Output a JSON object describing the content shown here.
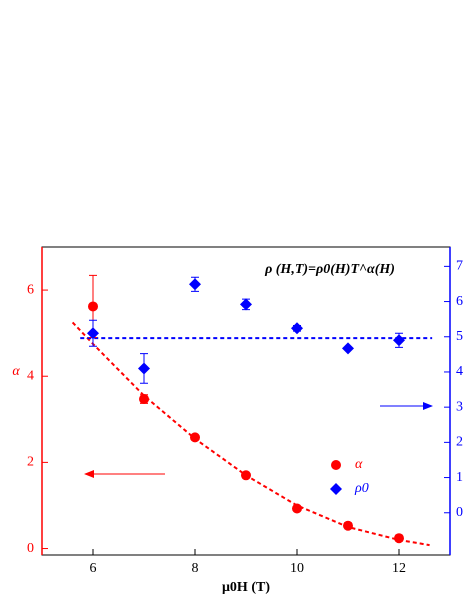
{
  "chart_data": {
    "type": "scatter",
    "annotation": "ρ (H,T)=ρ0(H)T^α(H)",
    "x_label": "μ0H (T)",
    "y_label": "α",
    "xlim": [
      5,
      13
    ],
    "xticks": [
      6,
      8,
      10,
      12
    ],
    "ylim": [
      -0.15,
      7
    ],
    "yticks": [
      0,
      2,
      4,
      6
    ],
    "y2lim": [
      -1.2,
      7.55
    ],
    "y2ticks": [
      0,
      1,
      2,
      3,
      4,
      5,
      6,
      7
    ],
    "legend": "lower right",
    "series": [
      {
        "name": "α",
        "color": "#ff0000",
        "marker": "circle",
        "x": [
          6,
          7,
          8,
          9,
          10,
          11,
          12
        ],
        "values": [
          5.62,
          3.47,
          2.58,
          1.7,
          0.93,
          0.53,
          0.24
        ],
        "errors": [
          0.72,
          0.1,
          0,
          0,
          0,
          0,
          0
        ]
      },
      {
        "name": "ρ0",
        "color": "#0000ff",
        "marker": "diamond",
        "axis": "y2",
        "x": [
          6,
          7,
          8,
          9,
          10,
          11,
          12
        ],
        "values": [
          5.1,
          4.1,
          6.49,
          5.92,
          5.24,
          4.67,
          4.9
        ],
        "errors": [
          0.37,
          0.42,
          0.2,
          0.15,
          0.08,
          0,
          0.2
        ]
      }
    ],
    "fits": [
      {
        "color": "#ff0000",
        "x": [
          5.6,
          6,
          7,
          8,
          9,
          10,
          11,
          12,
          12.6
        ],
        "values": [
          5.25,
          4.75,
          3.55,
          2.55,
          1.7,
          1.0,
          0.5,
          0.2,
          0.08
        ]
      },
      {
        "color": "#0000ff",
        "axis": "y2",
        "x": [
          5.75,
          12.65
        ],
        "values": [
          4.96,
          4.96
        ]
      }
    ]
  }
}
